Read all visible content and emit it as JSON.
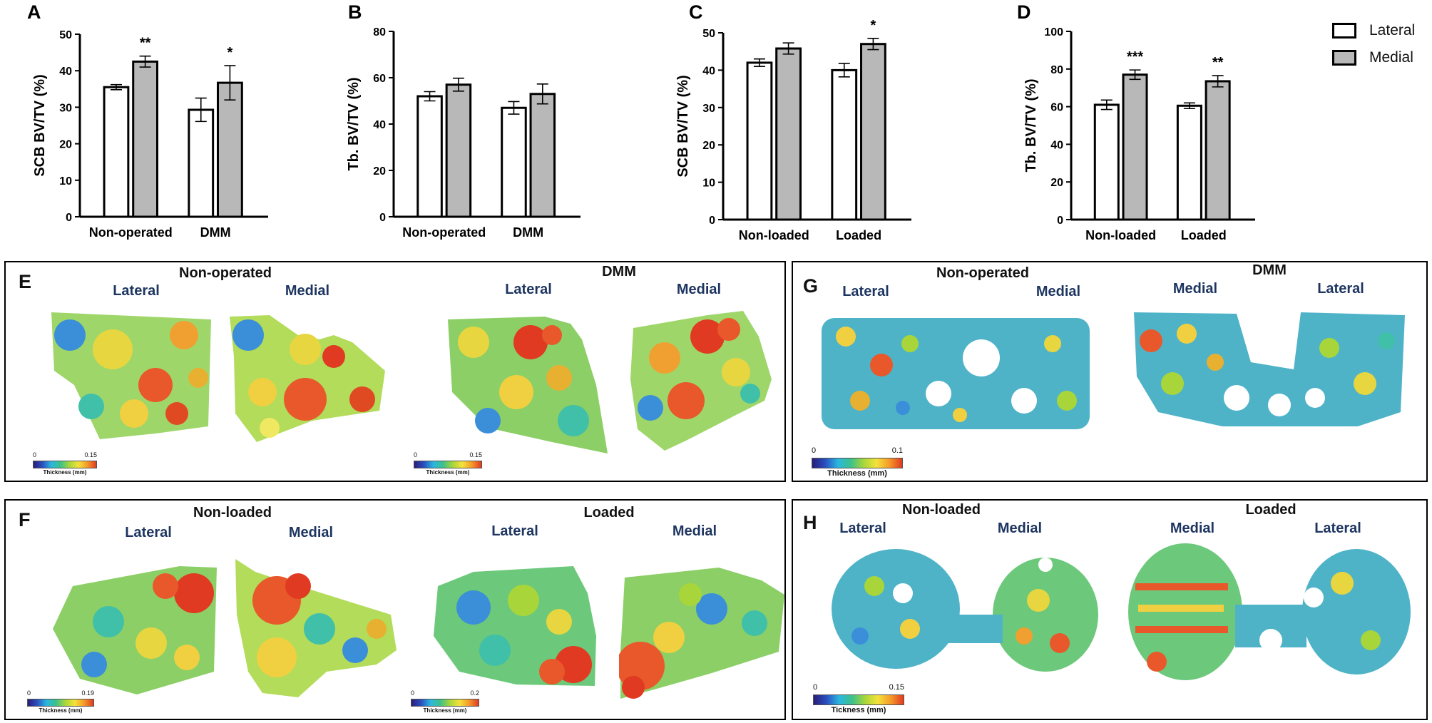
{
  "legend": {
    "items": [
      {
        "label": "Lateral",
        "color": "#ffffff"
      },
      {
        "label": "Medial",
        "color": "#b8b8b8"
      }
    ]
  },
  "chart_data": [
    {
      "panel": "A",
      "type": "bar",
      "ylabel": "SCB BV/TV (%)",
      "ylim": [
        0,
        50
      ],
      "yticks": [
        0,
        10,
        20,
        30,
        40,
        50
      ],
      "categories": [
        "Non-operated",
        "DMM"
      ],
      "series": [
        {
          "name": "Lateral",
          "values": [
            35.5,
            29.3
          ],
          "errors": [
            0.7,
            3.2
          ]
        },
        {
          "name": "Medial",
          "values": [
            42.5,
            36.7
          ],
          "errors": [
            1.5,
            4.7
          ]
        }
      ],
      "annotations": [
        {
          "category": "Non-operated",
          "text": "**"
        },
        {
          "category": "DMM",
          "text": "*"
        }
      ]
    },
    {
      "panel": "B",
      "type": "bar",
      "ylabel": "Tb. BV/TV (%)",
      "ylim": [
        0,
        80
      ],
      "yticks": [
        0,
        20,
        40,
        60,
        80
      ],
      "categories": [
        "Non-operated",
        "DMM"
      ],
      "series": [
        {
          "name": "Lateral",
          "values": [
            52,
            47
          ],
          "errors": [
            2,
            2.7
          ]
        },
        {
          "name": "Medial",
          "values": [
            57,
            53
          ],
          "errors": [
            2.8,
            4.3
          ]
        }
      ],
      "annotations": []
    },
    {
      "panel": "C",
      "type": "bar",
      "ylabel": "SCB BV/TV (%)",
      "ylim": [
        0,
        50
      ],
      "yticks": [
        0,
        10,
        20,
        30,
        40,
        50
      ],
      "categories": [
        "Non-loaded",
        "Loaded"
      ],
      "series": [
        {
          "name": "Lateral",
          "values": [
            42,
            40
          ],
          "errors": [
            1,
            1.8
          ]
        },
        {
          "name": "Medial",
          "values": [
            45.8,
            47
          ],
          "errors": [
            1.5,
            1.5
          ]
        }
      ],
      "annotations": [
        {
          "category": "Loaded",
          "text": "*"
        }
      ]
    },
    {
      "panel": "D",
      "type": "bar",
      "ylabel": "Tb. BV/TV (%)",
      "ylim": [
        0,
        100
      ],
      "yticks": [
        0,
        20,
        40,
        60,
        80,
        100
      ],
      "categories": [
        "Non-loaded",
        "Loaded"
      ],
      "series": [
        {
          "name": "Lateral",
          "values": [
            61,
            60.5
          ],
          "errors": [
            2.5,
            1.5
          ]
        },
        {
          "name": "Medial",
          "values": [
            77,
            73.5
          ],
          "errors": [
            2.5,
            3
          ]
        }
      ],
      "annotations": [
        {
          "category": "Non-loaded",
          "text": "***"
        },
        {
          "category": "Loaded",
          "text": "**"
        }
      ]
    }
  ],
  "panels": {
    "E": {
      "letter": "E",
      "title1": "Non-operated",
      "title2": "DMM",
      "sub1a": "Lateral",
      "sub1b": "Medial",
      "sub2a": "Lateral",
      "sub2b": "Medial",
      "scale1": {
        "min": "0",
        "max": "0.15",
        "title": "Thickness (mm)"
      },
      "scale2": {
        "min": "0",
        "max": "0.15",
        "title": "Thickness (mm)"
      }
    },
    "F": {
      "letter": "F",
      "title1": "Non-loaded",
      "title2": "Loaded",
      "sub1a": "Lateral",
      "sub1b": "Medial",
      "sub2a": "Lateral",
      "sub2b": "Medial",
      "scale1": {
        "min": "0",
        "max": "0.19",
        "title": "Thickness (mm)"
      },
      "scale2": {
        "min": "0",
        "max": "0.2",
        "title": "Thickness (mm)"
      }
    },
    "G": {
      "letter": "G",
      "title1": "Non-operated",
      "title2": "DMM",
      "sub1a": "Lateral",
      "sub1b": "Medial",
      "sub2a": "Medial",
      "sub2b": "Lateral",
      "scale1": {
        "min": "0",
        "max": "0.1",
        "title": "Thickness (mm)"
      }
    },
    "H": {
      "letter": "H",
      "title1": "Non-loaded",
      "title2": "Loaded",
      "sub1a": "Lateral",
      "sub1b": "Medial",
      "sub2a": "Medial",
      "sub2b": "Lateral",
      "scale1": {
        "min": "0",
        "max": "0.15",
        "title": "Tickness (mm)"
      }
    }
  }
}
